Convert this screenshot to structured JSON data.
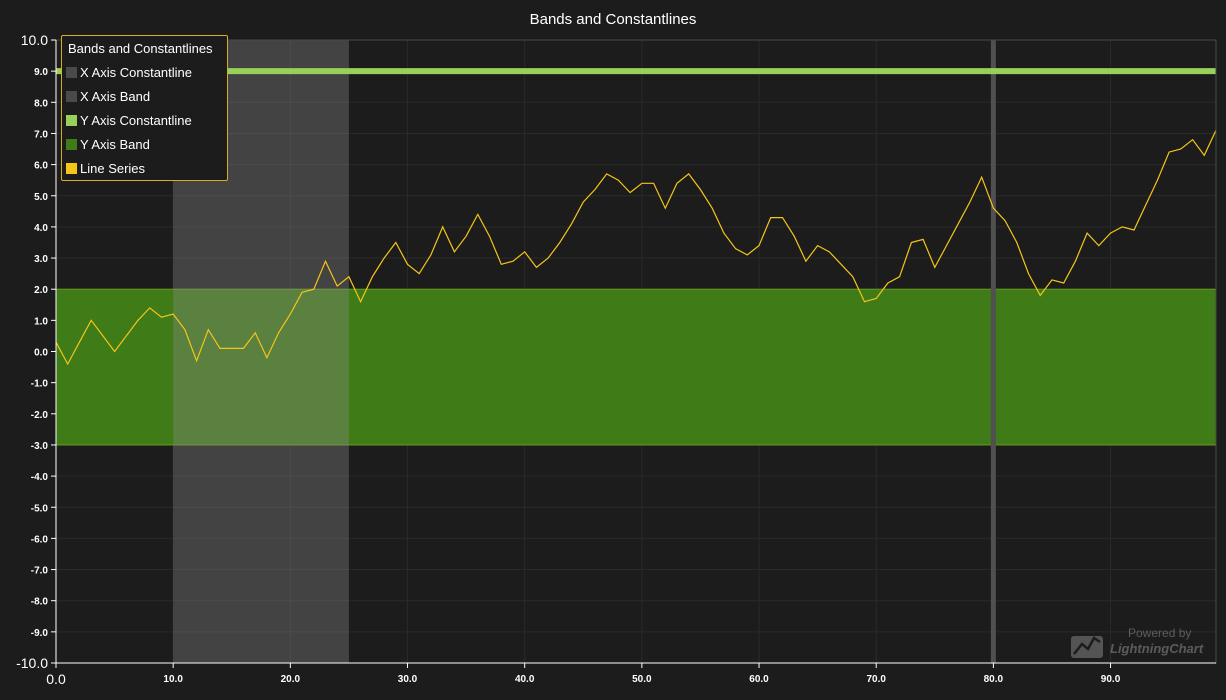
{
  "chart_data": {
    "type": "line",
    "title": "Bands and Constantlines",
    "xlim": [
      0,
      99
    ],
    "ylim": [
      -10,
      10
    ],
    "x_ticks": [
      "0.0",
      "10.0",
      "20.0",
      "30.0",
      "40.0",
      "50.0",
      "60.0",
      "70.0",
      "80.0",
      "90.0"
    ],
    "y_ticks": [
      "10.0",
      "9.0",
      "8.0",
      "7.0",
      "6.0",
      "5.0",
      "4.0",
      "3.0",
      "2.0",
      "1.0",
      "0.0",
      "-1.0",
      "-2.0",
      "-3.0",
      "-4.0",
      "-5.0",
      "-6.0",
      "-7.0",
      "-8.0",
      "-9.0",
      "-10.0"
    ],
    "grid": true,
    "legend_position": "top-left",
    "legend_title": "Bands and Constantlines",
    "x_constantline": {
      "name": "X Axis Constantline",
      "value": 80,
      "color": "#4a4a4a"
    },
    "x_band": {
      "name": "X Axis Band",
      "start": 10,
      "end": 25,
      "color": "#4a4a4a"
    },
    "y_constantline": {
      "name": "Y Axis Constantline",
      "value": 9,
      "color": "#99d05a"
    },
    "y_band": {
      "name": "Y Axis Band",
      "start": -3,
      "end": 2,
      "color": "#3f7b16"
    },
    "series": [
      {
        "name": "Line Series",
        "color": "#f5c518",
        "x": [
          0,
          1,
          2,
          3,
          4,
          5,
          6,
          7,
          8,
          9,
          10,
          11,
          12,
          13,
          14,
          15,
          16,
          17,
          18,
          19,
          20,
          21,
          22,
          23,
          24,
          25,
          26,
          27,
          28,
          29,
          30,
          31,
          32,
          33,
          34,
          35,
          36,
          37,
          38,
          39,
          40,
          41,
          42,
          43,
          44,
          45,
          46,
          47,
          48,
          49,
          50,
          51,
          52,
          53,
          54,
          55,
          56,
          57,
          58,
          59,
          60,
          61,
          62,
          63,
          64,
          65,
          66,
          67,
          68,
          69,
          70,
          71,
          72,
          73,
          74,
          75,
          76,
          77,
          78,
          79,
          80,
          81,
          82,
          83,
          84,
          85,
          86,
          87,
          88,
          89,
          90,
          91,
          92,
          93,
          94,
          95,
          96,
          97,
          98,
          99
        ],
        "values": [
          0.3,
          -0.4,
          0.3,
          1.0,
          0.5,
          0.0,
          0.5,
          1.0,
          1.4,
          1.1,
          1.2,
          0.7,
          -0.3,
          0.7,
          0.1,
          0.1,
          0.1,
          0.6,
          -0.2,
          0.6,
          1.2,
          1.9,
          2.0,
          2.9,
          2.1,
          2.4,
          1.6,
          2.4,
          3.0,
          3.5,
          2.8,
          2.5,
          3.1,
          4.0,
          3.2,
          3.7,
          4.4,
          3.7,
          2.8,
          2.9,
          3.2,
          2.7,
          3.0,
          3.5,
          4.1,
          4.8,
          5.2,
          5.7,
          5.5,
          5.1,
          5.4,
          5.4,
          4.6,
          5.4,
          5.7,
          5.2,
          4.6,
          3.8,
          3.3,
          3.1,
          3.4,
          4.3,
          4.3,
          3.7,
          2.9,
          3.4,
          3.2,
          2.8,
          2.4,
          1.6,
          1.7,
          2.2,
          2.4,
          3.5,
          3.6,
          2.7,
          3.4,
          4.1,
          4.8,
          5.6,
          4.6,
          4.2,
          3.5,
          2.5,
          1.8,
          2.3,
          2.2,
          2.9,
          3.8,
          3.4,
          3.8,
          4.0,
          3.9,
          4.7,
          5.5,
          6.4,
          6.5,
          6.8,
          6.3,
          7.1
        ]
      }
    ]
  },
  "watermark": {
    "top_text": "Powered by",
    "brand_text": "LightningChart",
    "icon": "lightningchart-logo-icon"
  }
}
